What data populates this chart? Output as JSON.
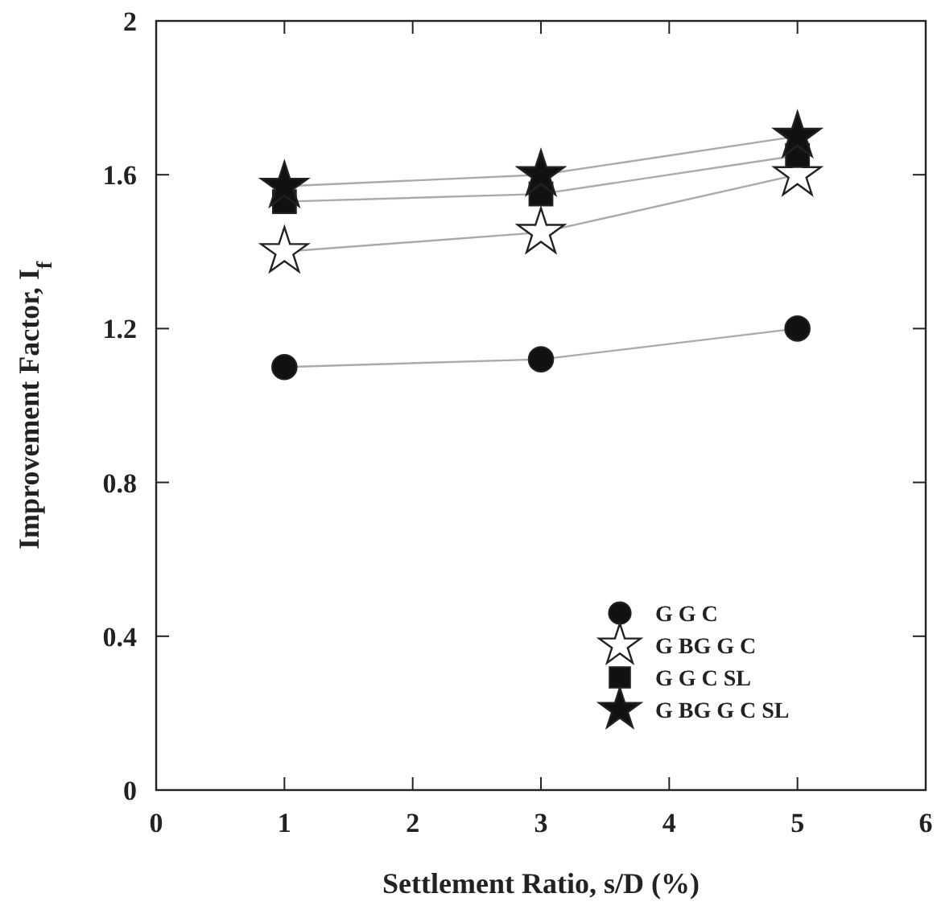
{
  "chart_data": {
    "type": "line",
    "xlabel": "Settlement Ratio, s/D (%)",
    "ylabel": "Improvement Factor, I$_{f}$",
    "x": [
      1,
      3,
      5
    ],
    "xlim": [
      0,
      6
    ],
    "xticks": [
      0,
      1,
      2,
      3,
      4,
      5,
      6
    ],
    "ylim": [
      0,
      2
    ],
    "yticks": [
      0,
      0.4,
      0.8,
      1.2,
      1.6,
      2
    ],
    "legend": "bottom right",
    "grid": false,
    "series": [
      {
        "name": "G G C",
        "color": "#111111",
        "marker": "circle",
        "values": [
          1.1,
          1.12,
          1.2
        ]
      },
      {
        "name": "G BG G C",
        "color": "#ffffff",
        "marker": "star",
        "values": [
          1.4,
          1.45,
          1.6
        ]
      },
      {
        "name": "G G C SL",
        "color": "#111111",
        "marker": "square",
        "values": [
          1.53,
          1.55,
          1.65
        ]
      },
      {
        "name": "G BG G C SL",
        "color": "#111111",
        "marker": "star",
        "values": [
          1.57,
          1.6,
          1.7
        ]
      }
    ]
  }
}
